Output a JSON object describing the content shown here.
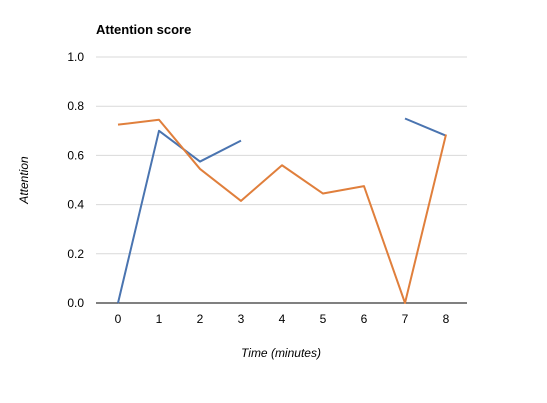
{
  "chart_data": {
    "type": "line",
    "title": "Attention score",
    "xlabel": "Time (minutes)",
    "ylabel": "Attention",
    "x": [
      0,
      1,
      2,
      3,
      4,
      5,
      6,
      7,
      8
    ],
    "xlim": [
      0,
      8
    ],
    "ylim": [
      0,
      1
    ],
    "xticks": [
      "0",
      "1",
      "2",
      "3",
      "4",
      "5",
      "6",
      "7",
      "8"
    ],
    "yticks": [
      "0.0",
      "0.2",
      "0.4",
      "0.6",
      "0.8",
      "1.0"
    ],
    "yticks_values": [
      0,
      0.2,
      0.4,
      0.6,
      0.8,
      1.0
    ],
    "grid": true,
    "legend": "none",
    "series": [
      {
        "color": "#4a74b0",
        "values": [
          0.0,
          0.7,
          0.575,
          0.66,
          null,
          null,
          null,
          0.75,
          0.68
        ]
      },
      {
        "color": "#e07f3c",
        "values": [
          0.725,
          0.745,
          0.545,
          0.415,
          0.56,
          0.445,
          0.475,
          0.0,
          0.685
        ]
      }
    ]
  }
}
